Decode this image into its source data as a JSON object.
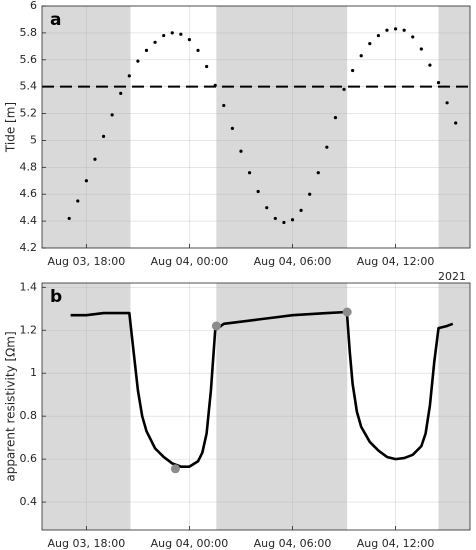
{
  "chart_data": [
    {
      "type": "scatter",
      "panel_label": "a",
      "ylabel": "Tide [m]",
      "year_label": "2021",
      "color": "#000000",
      "span_color": "#d9d9d9",
      "grid": true,
      "xlim": [
        "2021-08-03T15:25",
        "2021-08-04T16:20"
      ],
      "xticks": [
        {
          "value": "2021-08-03T18:00",
          "label": "Aug 03, 18:00"
        },
        {
          "value": "2021-08-04T00:00",
          "label": "Aug 04, 00:00"
        },
        {
          "value": "2021-08-04T06:00",
          "label": "Aug 04, 06:00"
        },
        {
          "value": "2021-08-04T12:00",
          "label": "Aug 04, 12:00"
        }
      ],
      "ylim": [
        4.2,
        6
      ],
      "yticks": [
        4.2,
        4.4,
        4.6,
        4.8,
        5,
        5.2,
        5.4,
        5.6,
        5.8,
        6
      ],
      "spans": [
        [
          "2021-08-03T15:25",
          "2021-08-03T20:34"
        ],
        [
          "2021-08-04T01:34",
          "2021-08-04T09:11"
        ],
        [
          "2021-08-04T14:30",
          "2021-08-04T16:20"
        ]
      ],
      "reference_line": 5.4,
      "x": [
        "2021-08-03T17:00",
        "2021-08-03T17:30",
        "2021-08-03T18:00",
        "2021-08-03T18:30",
        "2021-08-03T19:00",
        "2021-08-03T19:30",
        "2021-08-03T20:00",
        "2021-08-03T20:30",
        "2021-08-03T21:00",
        "2021-08-03T21:30",
        "2021-08-03T22:00",
        "2021-08-03T22:30",
        "2021-08-03T23:00",
        "2021-08-03T23:30",
        "2021-08-04T00:00",
        "2021-08-04T00:30",
        "2021-08-04T01:00",
        "2021-08-04T01:30",
        "2021-08-04T02:00",
        "2021-08-04T02:30",
        "2021-08-04T03:00",
        "2021-08-04T03:30",
        "2021-08-04T04:00",
        "2021-08-04T04:30",
        "2021-08-04T05:00",
        "2021-08-04T05:30",
        "2021-08-04T06:00",
        "2021-08-04T06:30",
        "2021-08-04T07:00",
        "2021-08-04T07:30",
        "2021-08-04T08:00",
        "2021-08-04T08:30",
        "2021-08-04T09:00",
        "2021-08-04T09:30",
        "2021-08-04T10:00",
        "2021-08-04T10:30",
        "2021-08-04T11:00",
        "2021-08-04T11:30",
        "2021-08-04T12:00",
        "2021-08-04T12:30",
        "2021-08-04T13:00",
        "2021-08-04T13:30",
        "2021-08-04T14:00",
        "2021-08-04T14:30",
        "2021-08-04T15:00",
        "2021-08-04T15:30"
      ],
      "values": [
        4.42,
        4.55,
        4.7,
        4.86,
        5.03,
        5.19,
        5.35,
        5.48,
        5.59,
        5.67,
        5.73,
        5.78,
        5.8,
        5.79,
        5.75,
        5.67,
        5.55,
        5.41,
        5.26,
        5.09,
        4.92,
        4.76,
        4.62,
        4.5,
        4.42,
        4.39,
        4.41,
        4.48,
        4.6,
        4.76,
        4.95,
        5.17,
        5.38,
        5.52,
        5.63,
        5.72,
        5.78,
        5.82,
        5.83,
        5.82,
        5.77,
        5.68,
        5.56,
        5.43,
        5.28,
        5.13
      ]
    },
    {
      "type": "line",
      "panel_label": "b",
      "ylabel": "apparent resistivity [Ωm]",
      "color": "#000000",
      "span_color": "#d9d9d9",
      "marker_color": "#8c8c8c",
      "grid": true,
      "xlim": [
        "2021-08-03T15:25",
        "2021-08-04T16:20"
      ],
      "xticks": [
        {
          "value": "2021-08-03T18:00",
          "label": "Aug 03, 18:00"
        },
        {
          "value": "2021-08-04T00:00",
          "label": "Aug 04, 00:00"
        },
        {
          "value": "2021-08-04T06:00",
          "label": "Aug 04, 06:00"
        },
        {
          "value": "2021-08-04T12:00",
          "label": "Aug 04, 12:00"
        }
      ],
      "ylim": [
        0.27,
        1.42
      ],
      "yticks": [
        0.4,
        0.6,
        0.8,
        1,
        1.2,
        1.4
      ],
      "spans": [
        [
          "2021-08-03T15:25",
          "2021-08-03T20:34"
        ],
        [
          "2021-08-04T01:34",
          "2021-08-04T09:11"
        ],
        [
          "2021-08-04T14:30",
          "2021-08-04T16:20"
        ]
      ],
      "x": [
        "2021-08-03T17:05",
        "2021-08-03T18:00",
        "2021-08-03T19:00",
        "2021-08-03T20:30",
        "2021-08-03T20:45",
        "2021-08-03T21:00",
        "2021-08-03T21:15",
        "2021-08-03T21:30",
        "2021-08-03T22:00",
        "2021-08-03T22:30",
        "2021-08-03T23:00",
        "2021-08-03T23:30",
        "2021-08-04T00:00",
        "2021-08-04T00:30",
        "2021-08-04T00:45",
        "2021-08-04T01:00",
        "2021-08-04T01:15",
        "2021-08-04T01:30",
        "2021-08-04T02:00",
        "2021-08-04T03:00",
        "2021-08-04T04:00",
        "2021-08-04T05:00",
        "2021-08-04T06:00",
        "2021-08-04T08:00",
        "2021-08-04T09:10",
        "2021-08-04T09:20",
        "2021-08-04T09:30",
        "2021-08-04T09:45",
        "2021-08-04T10:00",
        "2021-08-04T10:30",
        "2021-08-04T11:00",
        "2021-08-04T11:30",
        "2021-08-04T12:00",
        "2021-08-04T12:30",
        "2021-08-04T13:00",
        "2021-08-04T13:30",
        "2021-08-04T13:45",
        "2021-08-04T14:00",
        "2021-08-04T14:15",
        "2021-08-04T14:30",
        "2021-08-04T15:00",
        "2021-08-04T15:20"
      ],
      "values": [
        1.27,
        1.27,
        1.28,
        1.28,
        1.1,
        0.92,
        0.8,
        0.73,
        0.65,
        0.61,
        0.58,
        0.565,
        0.565,
        0.59,
        0.63,
        0.72,
        0.92,
        1.2,
        1.23,
        1.24,
        1.25,
        1.26,
        1.27,
        1.28,
        1.285,
        1.1,
        0.95,
        0.82,
        0.75,
        0.68,
        0.64,
        0.61,
        0.6,
        0.605,
        0.62,
        0.66,
        0.72,
        0.85,
        1.05,
        1.21,
        1.22,
        1.23
      ],
      "markers": {
        "x": [
          "2021-08-03T23:11",
          "2021-08-04T01:34",
          "2021-08-04T09:11"
        ],
        "values": [
          0.555,
          1.22,
          1.285
        ]
      }
    }
  ]
}
